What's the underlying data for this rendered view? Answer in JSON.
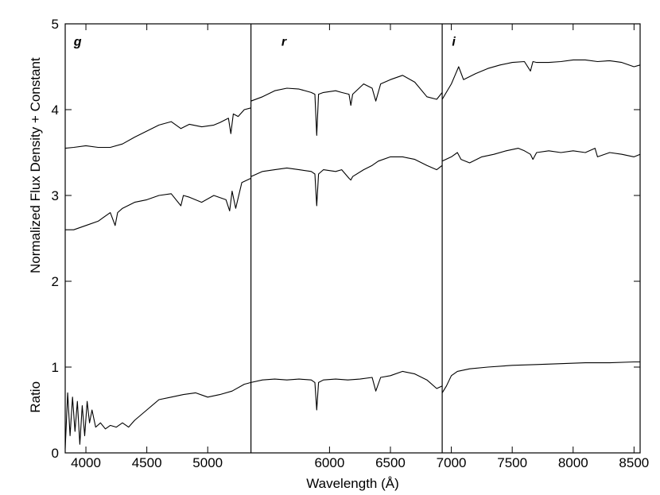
{
  "chart_data": {
    "type": "line",
    "title": "",
    "xlabel": "Wavelength (Å)",
    "ylabel": "Normalized Flux Density + Constant",
    "ylabel_secondary": "Ratio",
    "xlim": [
      3830,
      8550
    ],
    "ylim": [
      0,
      5
    ],
    "x_ticks": [
      4000,
      4500,
      5000,
      6000,
      6500,
      7000,
      7500,
      8000,
      8500
    ],
    "y_ticks": [
      0,
      1,
      2,
      3,
      4,
      5
    ],
    "panel_dividers": [
      5355,
      6925
    ],
    "panels": [
      {
        "label": "g",
        "x": 3900,
        "y": 4.8
      },
      {
        "label": "r",
        "x": 5605,
        "y": 4.8
      },
      {
        "label": "i",
        "x": 7005,
        "y": 4.8
      }
    ],
    "grid": false,
    "series": [
      {
        "x": [
          3830,
          3900,
          4000,
          4100,
          4200,
          4300,
          4400,
          4500,
          4600,
          4700,
          4780,
          4850,
          4950,
          5050,
          5100,
          5170,
          5190,
          5210,
          5250,
          5300,
          5355
        ],
        "y": [
          3.55,
          3.56,
          3.58,
          3.56,
          3.56,
          3.6,
          3.68,
          3.75,
          3.82,
          3.86,
          3.78,
          3.83,
          3.8,
          3.82,
          3.85,
          3.9,
          3.72,
          3.95,
          3.92,
          4.0,
          4.02
        ]
      },
      {
        "x": [
          5355,
          5450,
          5550,
          5650,
          5750,
          5850,
          5880,
          5895,
          5910,
          5950,
          6050,
          6100,
          6160,
          6175,
          6190,
          6280,
          6350,
          6380,
          6420,
          6500,
          6600,
          6700,
          6800,
          6880,
          6925
        ],
        "y": [
          4.1,
          4.15,
          4.22,
          4.25,
          4.24,
          4.2,
          4.18,
          3.7,
          4.18,
          4.2,
          4.22,
          4.2,
          4.18,
          4.05,
          4.18,
          4.3,
          4.25,
          4.1,
          4.3,
          4.35,
          4.4,
          4.32,
          4.15,
          4.12,
          4.2
        ]
      },
      {
        "x": [
          6925,
          7000,
          7030,
          7060,
          7100,
          7200,
          7300,
          7400,
          7500,
          7600,
          7650,
          7670,
          7700,
          7800,
          7900,
          8000,
          8100,
          8200,
          8300,
          8400,
          8500,
          8550
        ],
        "y": [
          4.12,
          4.3,
          4.4,
          4.5,
          4.35,
          4.42,
          4.48,
          4.52,
          4.55,
          4.56,
          4.45,
          4.56,
          4.55,
          4.55,
          4.56,
          4.58,
          4.58,
          4.56,
          4.57,
          4.55,
          4.5,
          4.52
        ]
      },
      {
        "x": [
          3830,
          3900,
          4000,
          4100,
          4200,
          4240,
          4260,
          4300,
          4400,
          4500,
          4600,
          4700,
          4780,
          4800,
          4850,
          4950,
          5050,
          5150,
          5180,
          5200,
          5230,
          5280,
          5355
        ],
        "y": [
          2.6,
          2.6,
          2.65,
          2.7,
          2.8,
          2.65,
          2.8,
          2.85,
          2.92,
          2.95,
          3.0,
          3.02,
          2.88,
          3.0,
          2.98,
          2.92,
          3.0,
          2.95,
          2.82,
          3.05,
          2.85,
          3.15,
          3.2
        ]
      },
      {
        "x": [
          5355,
          5450,
          5550,
          5650,
          5750,
          5850,
          5880,
          5895,
          5910,
          5950,
          6050,
          6100,
          6160,
          6175,
          6190,
          6280,
          6350,
          6400,
          6500,
          6600,
          6700,
          6800,
          6880,
          6925
        ],
        "y": [
          3.22,
          3.28,
          3.3,
          3.32,
          3.3,
          3.28,
          3.25,
          2.88,
          3.25,
          3.3,
          3.28,
          3.3,
          3.2,
          3.18,
          3.22,
          3.3,
          3.35,
          3.4,
          3.45,
          3.45,
          3.42,
          3.35,
          3.3,
          3.35
        ]
      },
      {
        "x": [
          6925,
          7000,
          7050,
          7080,
          7150,
          7250,
          7350,
          7450,
          7550,
          7600,
          7650,
          7670,
          7700,
          7800,
          7900,
          8000,
          8100,
          8180,
          8200,
          8300,
          8400,
          8500,
          8550
        ],
        "y": [
          3.4,
          3.45,
          3.5,
          3.42,
          3.38,
          3.45,
          3.48,
          3.52,
          3.55,
          3.52,
          3.48,
          3.42,
          3.5,
          3.52,
          3.5,
          3.52,
          3.5,
          3.55,
          3.45,
          3.5,
          3.48,
          3.45,
          3.48
        ]
      },
      {
        "x": [
          3830,
          3850,
          3870,
          3890,
          3910,
          3930,
          3950,
          3970,
          3990,
          4010,
          4030,
          4050,
          4080,
          4120,
          4160,
          4200,
          4250,
          4300,
          4350,
          4400,
          4500,
          4600,
          4700,
          4800,
          4900,
          5000,
          5100,
          5200,
          5300,
          5355
        ],
        "y": [
          0.05,
          0.7,
          0.2,
          0.65,
          0.25,
          0.6,
          0.1,
          0.55,
          0.2,
          0.6,
          0.35,
          0.5,
          0.3,
          0.35,
          0.28,
          0.32,
          0.3,
          0.35,
          0.3,
          0.38,
          0.5,
          0.62,
          0.65,
          0.68,
          0.7,
          0.65,
          0.68,
          0.72,
          0.8,
          0.82
        ]
      },
      {
        "x": [
          5355,
          5450,
          5550,
          5650,
          5750,
          5850,
          5880,
          5895,
          5910,
          5950,
          6050,
          6150,
          6250,
          6350,
          6380,
          6420,
          6500,
          6600,
          6700,
          6800,
          6880,
          6925
        ],
        "y": [
          0.82,
          0.85,
          0.86,
          0.85,
          0.86,
          0.85,
          0.82,
          0.5,
          0.82,
          0.85,
          0.86,
          0.85,
          0.86,
          0.88,
          0.72,
          0.88,
          0.9,
          0.95,
          0.92,
          0.85,
          0.75,
          0.78
        ]
      },
      {
        "x": [
          6925,
          6960,
          7000,
          7050,
          7150,
          7300,
          7500,
          7700,
          7900,
          8100,
          8300,
          8500,
          8550
        ],
        "y": [
          0.7,
          0.78,
          0.9,
          0.95,
          0.98,
          1.0,
          1.02,
          1.03,
          1.04,
          1.05,
          1.05,
          1.06,
          1.06
        ]
      }
    ]
  }
}
